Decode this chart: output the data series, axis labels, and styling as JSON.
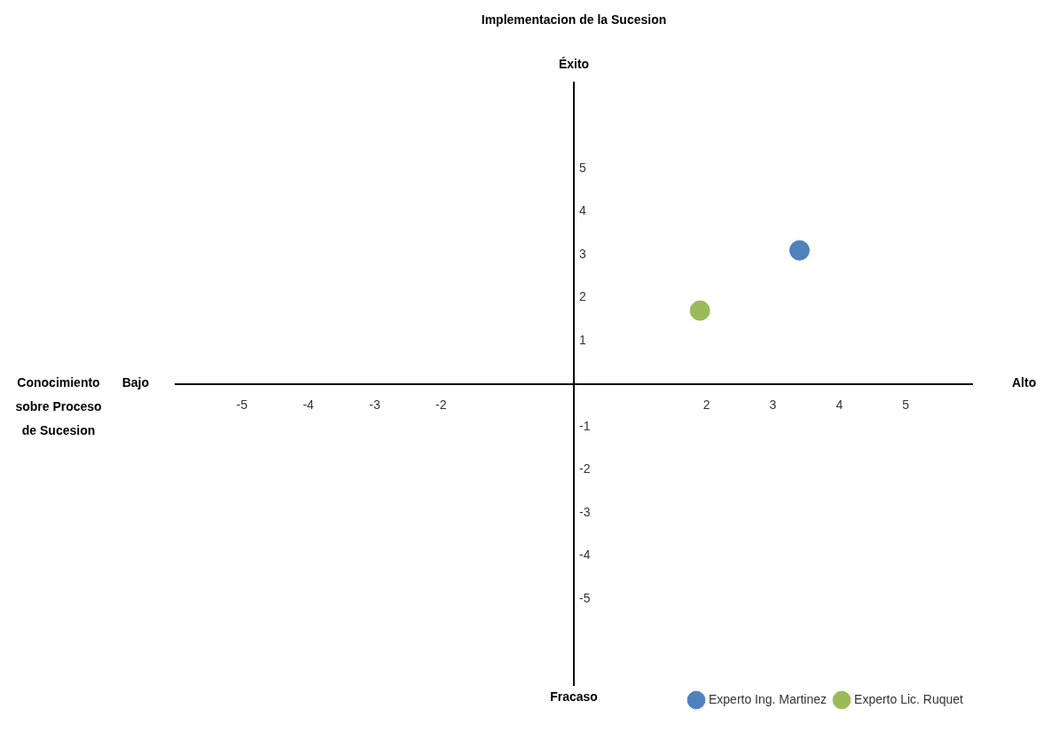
{
  "chart_data": {
    "type": "scatter",
    "ylabel": "Implementacion de la Sucesion",
    "annotations": [
      "Bajo",
      "Alto",
      "Éxito",
      "Fracaso",
      "Conocimiento sobre Proceso de Sucesion"
    ],
    "series": [
      {
        "name": "Experto Ing. Martinez",
        "color": "#4f81bd",
        "x": [
          3.4
        ],
        "values": [
          3.1
        ]
      },
      {
        "name": "Experto Lic. Ruquet",
        "color": "#9bbb59",
        "x": [
          1.9
        ],
        "values": [
          1.7
        ]
      }
    ],
    "xlim": [
      -6,
      6
    ],
    "ylim": [
      -7,
      7
    ],
    "xticks": [
      -5,
      -4,
      -3,
      -2,
      2,
      3,
      4,
      5
    ],
    "yticks": [
      -5,
      -4,
      -3,
      -2,
      -1,
      1,
      2,
      3,
      4,
      5
    ],
    "grid": false,
    "legend": "bottom right",
    "marker": "circle"
  }
}
